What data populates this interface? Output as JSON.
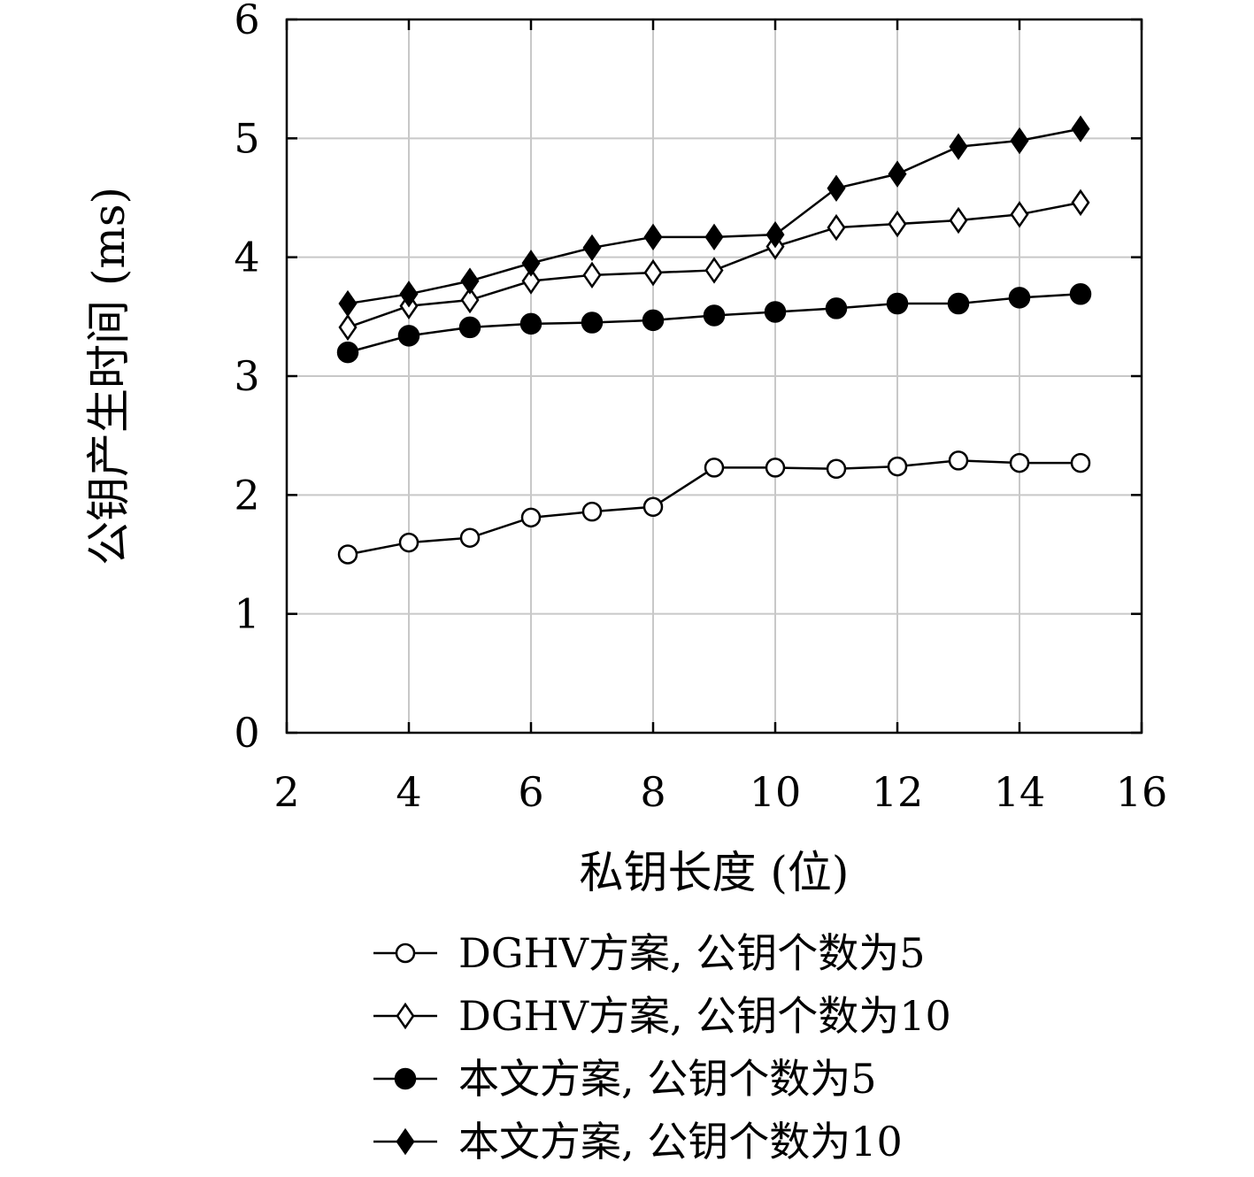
{
  "chart_data": {
    "type": "line",
    "xlabel": "私钥长度 (位)",
    "ylabel": "公钥产生时间 (ms)",
    "xlim": [
      2,
      16
    ],
    "ylim": [
      0,
      6
    ],
    "xticks": [
      2,
      4,
      6,
      8,
      10,
      12,
      14,
      16
    ],
    "yticks": [
      0,
      1,
      2,
      3,
      4,
      5,
      6
    ],
    "grid": true,
    "legend_position": "bottom",
    "x": [
      3,
      4,
      5,
      6,
      7,
      8,
      9,
      10,
      11,
      12,
      13,
      14,
      15
    ],
    "series": [
      {
        "name": "DGHV方案, 公钥个数为5",
        "marker": "circle-open",
        "values": [
          1.5,
          1.6,
          1.64,
          1.81,
          1.86,
          1.9,
          2.23,
          2.23,
          2.22,
          2.24,
          2.29,
          2.27,
          2.27
        ]
      },
      {
        "name": "DGHV方案, 公钥个数为10",
        "marker": "diamond-open",
        "values": [
          3.41,
          3.59,
          3.64,
          3.8,
          3.85,
          3.87,
          3.89,
          4.09,
          4.25,
          4.28,
          4.31,
          4.36,
          4.46
        ]
      },
      {
        "name": "本文方案, 公钥个数为5",
        "marker": "circle-filled",
        "values": [
          3.2,
          3.34,
          3.41,
          3.44,
          3.45,
          3.47,
          3.51,
          3.54,
          3.57,
          3.61,
          3.61,
          3.66,
          3.69
        ]
      },
      {
        "name": "本文方案, 公钥个数为10",
        "marker": "diamond-filled",
        "values": [
          3.61,
          3.69,
          3.8,
          3.95,
          4.08,
          4.17,
          4.17,
          4.19,
          4.58,
          4.7,
          4.93,
          4.98,
          5.08
        ]
      }
    ]
  }
}
